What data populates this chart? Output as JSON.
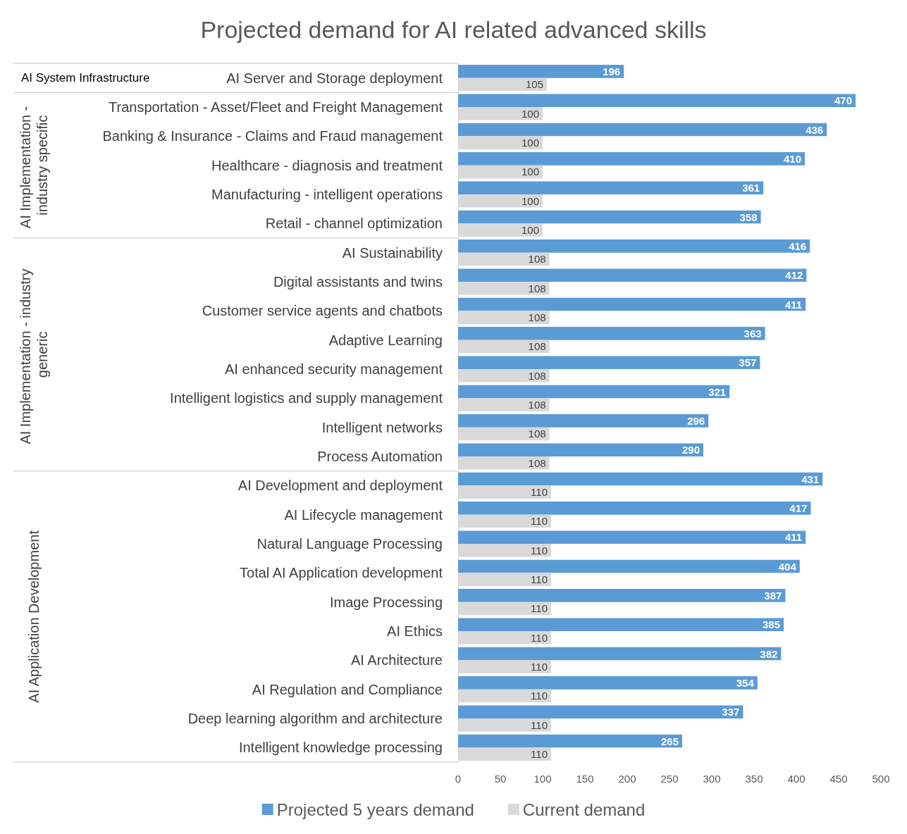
{
  "chart_data": {
    "type": "bar",
    "orientation": "horizontal",
    "title": "Projected demand for AI related advanced skills",
    "categories": [
      "AI Server and Storage deployment",
      "Transportation - Asset/Fleet and Freight Management",
      "Banking & Insurance - Claims and Fraud management",
      "Healthcare - diagnosis and treatment",
      "Manufacturing - intelligent operations",
      "Retail - channel optimization",
      "AI Sustainability",
      "Digital assistants and twins",
      "Customer service agents and chatbots",
      "Adaptive Learning",
      "AI enhanced security management",
      "Intelligent logistics and supply management",
      "Intelligent networks",
      "Process Automation",
      "AI Development and deployment",
      "AI Lifecycle management",
      "Natural Language Processing",
      "Total AI Application development",
      "Image Processing",
      "AI Ethics",
      "AI Architecture",
      "AI Regulation and Compliance",
      "Deep learning algorithm and architecture",
      "Intelligent knowledge processing"
    ],
    "series": [
      {
        "name": "Projected 5 years demand",
        "color": "#5b9bd5",
        "values": [
          196,
          470,
          436,
          410,
          361,
          358,
          416,
          412,
          411,
          363,
          357,
          321,
          296,
          290,
          431,
          417,
          411,
          404,
          387,
          385,
          382,
          354,
          337,
          265
        ]
      },
      {
        "name": "Current demand",
        "color": "#d9d9d9",
        "values": [
          105,
          100,
          100,
          100,
          100,
          100,
          108,
          108,
          108,
          108,
          108,
          108,
          108,
          108,
          110,
          110,
          110,
          110,
          110,
          110,
          110,
          110,
          110,
          110
        ]
      }
    ],
    "xlim": [
      0,
      500
    ],
    "xticks": [
      0,
      50,
      100,
      150,
      200,
      250,
      300,
      350,
      400,
      450,
      500
    ],
    "data_labels": true,
    "grid": false,
    "legend": "bottom",
    "annotations": [
      "AI System Infrastructure",
      "AI Implementation - industry specific",
      "AI Implementation - industry generic",
      "AI Application Development"
    ]
  }
}
